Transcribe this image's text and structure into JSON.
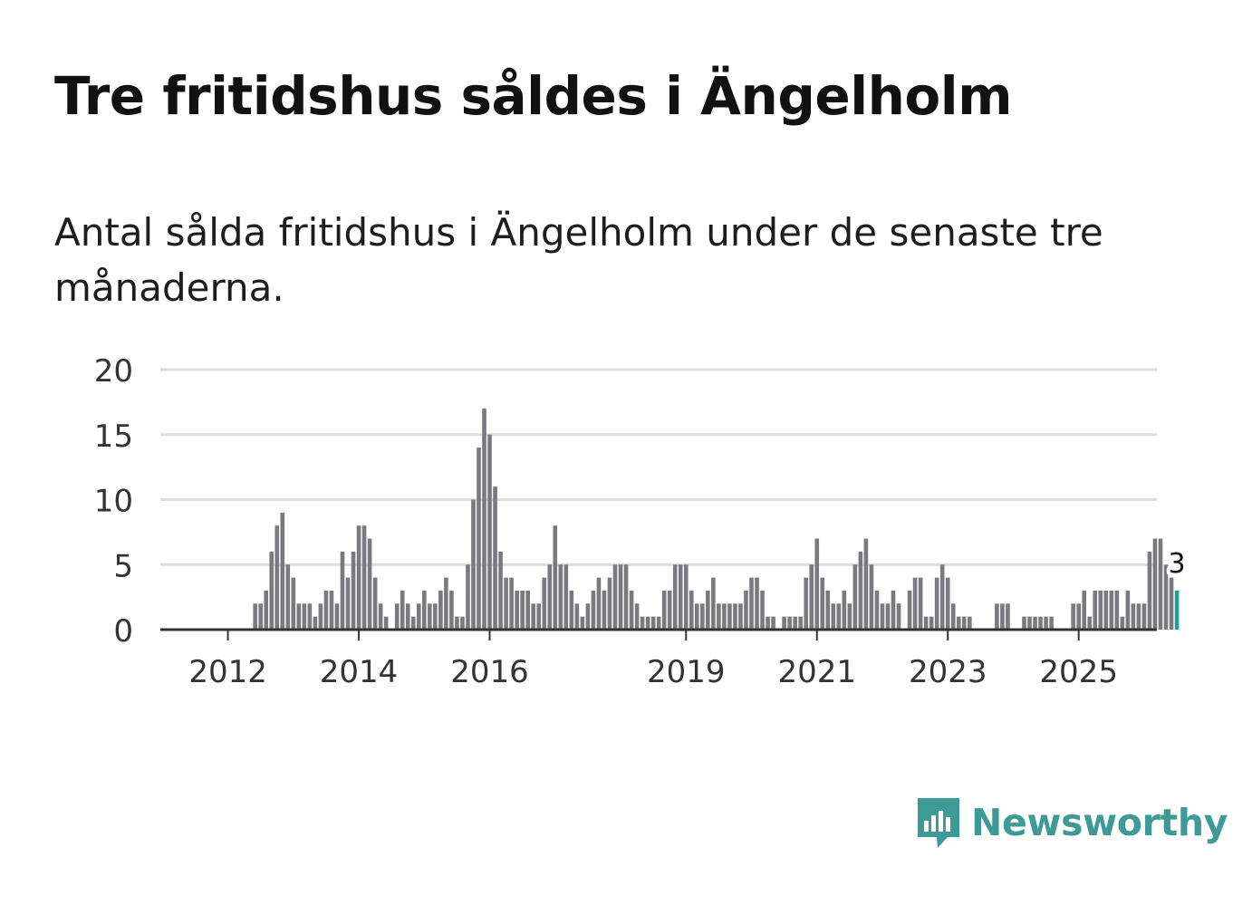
{
  "title": "Tre fritidshus såldes i Ängelholm",
  "subtitle": "Antal sålda fritidshus i Ängelholm under de senaste tre månaderna.",
  "brand": {
    "name": "Newsworthy",
    "color": "#3c9a97",
    "icon": "newsworthy-chart-bubble-icon"
  },
  "colors": {
    "bar": "#7a797e",
    "highlight": "#21a09a",
    "grid": "#dddddd",
    "axis": "#333333",
    "text": "#333333"
  },
  "chart_data": {
    "type": "bar",
    "x_start": "2011-09",
    "x_unit": "month",
    "ylim": [
      0,
      20
    ],
    "yticks": [
      0,
      5,
      10,
      15,
      20
    ],
    "xticks": [
      {
        "label": "2012",
        "month": "2012-01"
      },
      {
        "label": "2014",
        "month": "2014-01"
      },
      {
        "label": "2016",
        "month": "2016-01"
      },
      {
        "label": "2019",
        "month": "2019-01"
      },
      {
        "label": "2021",
        "month": "2021-01"
      },
      {
        "label": "2023",
        "month": "2023-01"
      },
      {
        "label": "2025",
        "month": "2025-01"
      }
    ],
    "grid": true,
    "values": [
      0,
      0,
      0,
      0,
      0,
      0,
      0,
      0,
      0,
      2,
      2,
      3,
      6,
      8,
      9,
      5,
      4,
      2,
      2,
      2,
      1,
      2,
      3,
      3,
      2,
      6,
      4,
      6,
      8,
      8,
      7,
      4,
      2,
      1,
      0,
      2,
      3,
      2,
      1,
      2,
      3,
      2,
      2,
      3,
      4,
      3,
      1,
      1,
      5,
      10,
      14,
      17,
      15,
      11,
      6,
      4,
      4,
      3,
      3,
      3,
      2,
      2,
      4,
      5,
      8,
      5,
      5,
      3,
      2,
      1,
      2,
      3,
      4,
      3,
      4,
      5,
      5,
      5,
      3,
      2,
      1,
      1,
      1,
      1,
      3,
      3,
      5,
      5,
      5,
      3,
      2,
      2,
      3,
      4,
      2,
      2,
      2,
      2,
      2,
      3,
      4,
      4,
      3,
      1,
      1,
      0,
      1,
      1,
      1,
      1,
      4,
      5,
      7,
      4,
      3,
      2,
      2,
      3,
      2,
      5,
      6,
      7,
      5,
      3,
      2,
      2,
      3,
      2,
      0,
      3,
      4,
      4,
      1,
      1,
      4,
      5,
      4,
      2,
      1,
      1,
      1,
      0,
      0,
      0,
      0,
      2,
      2,
      2,
      0,
      0,
      1,
      1,
      1,
      1,
      1,
      1,
      0,
      0,
      0,
      2,
      2,
      3,
      1,
      3,
      3,
      3,
      3,
      3,
      1,
      3,
      2,
      2,
      2,
      6,
      7,
      7,
      5,
      4,
      3
    ],
    "highlight_last": true,
    "last_label": "3"
  }
}
